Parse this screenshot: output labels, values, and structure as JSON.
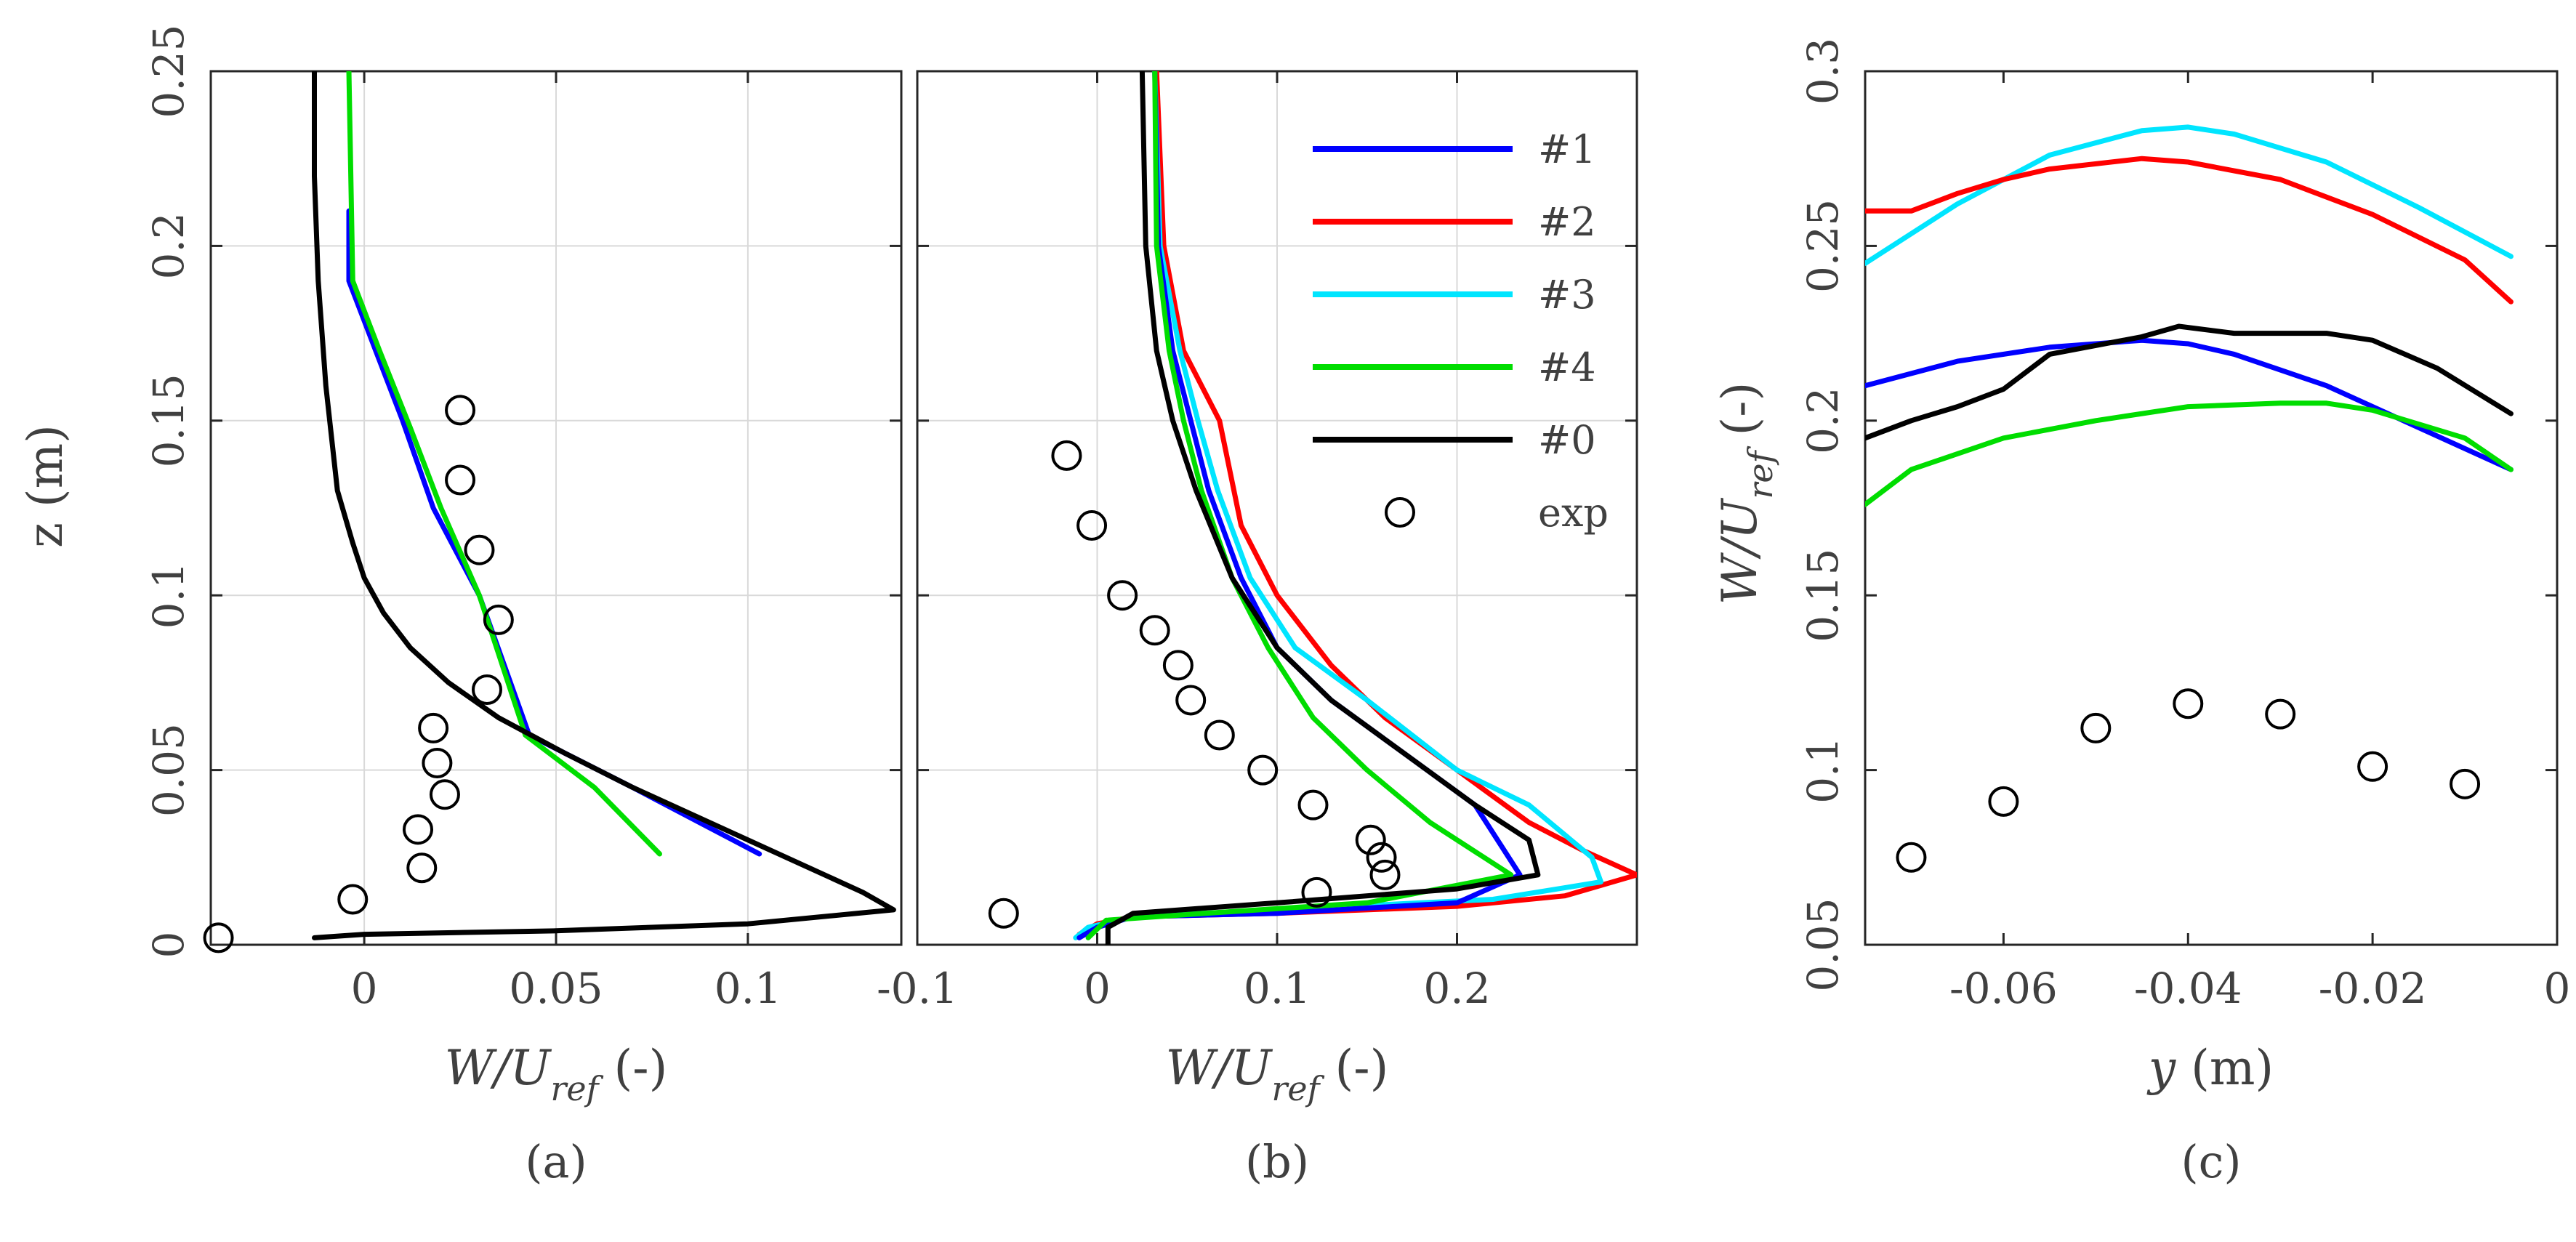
{
  "chart_data": [
    {
      "id": "a",
      "type": "line",
      "panel_label": "(a)",
      "xlabel": {
        "main": "W/U",
        "sub": "ref",
        "unit": " (-)"
      },
      "ylabel": "z (m)",
      "xlim": [
        -0.04,
        0.14
      ],
      "ylim": [
        0,
        0.25
      ],
      "xticks": [
        0,
        0.05,
        0.1
      ],
      "xtick_labels": [
        "0",
        "0.05",
        "0.1"
      ],
      "yticks": [
        0,
        0.05,
        0.1,
        0.15,
        0.2,
        0.25
      ],
      "ytick_labels": [
        "0",
        "0.05",
        "0.1",
        "0.15",
        "0.2",
        "0.25"
      ],
      "ytick_rotated": true,
      "grid": true,
      "series": [
        {
          "id": "s1",
          "color": "#0000ff",
          "points": [
            [
              -0.004,
              0.21
            ],
            [
              -0.004,
              0.19
            ],
            [
              0.003,
              0.17
            ],
            [
              0.01,
              0.15
            ],
            [
              0.018,
              0.125
            ],
            [
              0.03,
              0.1
            ],
            [
              0.043,
              0.06
            ],
            [
              0.07,
              0.045
            ],
            [
              0.103,
              0.026
            ]
          ]
        },
        {
          "id": "s4",
          "color": "#00dd00",
          "points": [
            [
              -0.004,
              0.25
            ],
            [
              -0.003,
              0.19
            ],
            [
              0.004,
              0.17
            ],
            [
              0.012,
              0.148
            ],
            [
              0.02,
              0.125
            ],
            [
              0.03,
              0.1
            ],
            [
              0.042,
              0.06
            ],
            [
              0.06,
              0.045
            ],
            [
              0.077,
              0.026
            ]
          ]
        },
        {
          "id": "s0",
          "color": "#000000",
          "points": [
            [
              -0.013,
              0.25
            ],
            [
              -0.013,
              0.22
            ],
            [
              -0.012,
              0.19
            ],
            [
              -0.01,
              0.16
            ],
            [
              -0.007,
              0.13
            ],
            [
              -0.003,
              0.115
            ],
            [
              0.0,
              0.105
            ],
            [
              0.005,
              0.095
            ],
            [
              0.012,
              0.085
            ],
            [
              0.022,
              0.075
            ],
            [
              0.035,
              0.065
            ],
            [
              0.052,
              0.055
            ],
            [
              0.07,
              0.045
            ],
            [
              0.09,
              0.035
            ],
            [
              0.11,
              0.025
            ],
            [
              0.13,
              0.015
            ],
            [
              0.138,
              0.01
            ],
            [
              0.1,
              0.006
            ],
            [
              0.05,
              0.004
            ],
            [
              0.0,
              0.003
            ],
            [
              -0.013,
              0.002
            ]
          ]
        }
      ],
      "exp_points": [
        [
          -0.038,
          0.002
        ],
        [
          -0.003,
          0.013
        ],
        [
          0.015,
          0.022
        ],
        [
          0.014,
          0.033
        ],
        [
          0.021,
          0.043
        ],
        [
          0.019,
          0.052
        ],
        [
          0.018,
          0.062
        ],
        [
          0.032,
          0.073
        ],
        [
          0.035,
          0.093
        ],
        [
          0.03,
          0.113
        ],
        [
          0.025,
          0.133
        ],
        [
          0.025,
          0.153
        ]
      ]
    },
    {
      "id": "b",
      "type": "line",
      "panel_label": "(b)",
      "xlabel": {
        "main": "W/U",
        "sub": "ref",
        "unit": " (-)"
      },
      "ylabel": "",
      "xlim": [
        -0.1,
        0.3
      ],
      "ylim": [
        0,
        0.25
      ],
      "xticks": [
        -0.1,
        0,
        0.1,
        0.2
      ],
      "xtick_labels": [
        "-0.1",
        "0",
        "0.1",
        "0.2"
      ],
      "yticks": [
        0,
        0.05,
        0.1,
        0.15,
        0.2,
        0.25
      ],
      "ytick_labels": [],
      "grid": true,
      "legend": {
        "position": "top-right",
        "entries": [
          {
            "label": "#1",
            "color": "#0000ff",
            "kind": "line"
          },
          {
            "label": "#2",
            "color": "#ff0000",
            "kind": "line"
          },
          {
            "label": "#3",
            "color": "#00e5ff",
            "kind": "line"
          },
          {
            "label": "#4",
            "color": "#00dd00",
            "kind": "line"
          },
          {
            "label": "#0",
            "color": "#000000",
            "kind": "line"
          },
          {
            "label": "exp",
            "color": "#000000",
            "kind": "marker"
          }
        ]
      },
      "series": [
        {
          "id": "s2",
          "color": "#ff0000",
          "points": [
            [
              0.033,
              0.25
            ],
            [
              0.037,
              0.2
            ],
            [
              0.048,
              0.17
            ],
            [
              0.068,
              0.15
            ],
            [
              0.08,
              0.12
            ],
            [
              0.1,
              0.1
            ],
            [
              0.13,
              0.08
            ],
            [
              0.16,
              0.065
            ],
            [
              0.2,
              0.05
            ],
            [
              0.24,
              0.035
            ],
            [
              0.27,
              0.027
            ],
            [
              0.3,
              0.02
            ],
            [
              0.26,
              0.014
            ],
            [
              0.2,
              0.011
            ],
            [
              0.1,
              0.009
            ],
            [
              0.02,
              0.008
            ],
            [
              0.0,
              0.006
            ],
            [
              -0.01,
              0.003
            ]
          ]
        },
        {
          "id": "s3",
          "color": "#00e5ff",
          "points": [
            [
              0.032,
              0.25
            ],
            [
              0.035,
              0.2
            ],
            [
              0.046,
              0.17
            ],
            [
              0.056,
              0.15
            ],
            [
              0.067,
              0.13
            ],
            [
              0.085,
              0.105
            ],
            [
              0.11,
              0.085
            ],
            [
              0.15,
              0.07
            ],
            [
              0.2,
              0.05
            ],
            [
              0.24,
              0.04
            ],
            [
              0.275,
              0.025
            ],
            [
              0.28,
              0.018
            ],
            [
              0.22,
              0.013
            ],
            [
              0.1,
              0.01
            ],
            [
              0.02,
              0.008
            ],
            [
              -0.005,
              0.005
            ],
            [
              -0.012,
              0.002
            ]
          ]
        },
        {
          "id": "s1",
          "color": "#0000ff",
          "points": [
            [
              0.032,
              0.25
            ],
            [
              0.034,
              0.2
            ],
            [
              0.042,
              0.17
            ],
            [
              0.052,
              0.15
            ],
            [
              0.062,
              0.13
            ],
            [
              0.08,
              0.105
            ],
            [
              0.1,
              0.085
            ],
            [
              0.13,
              0.07
            ],
            [
              0.17,
              0.055
            ],
            [
              0.21,
              0.04
            ],
            [
              0.235,
              0.02
            ],
            [
              0.2,
              0.012
            ],
            [
              0.1,
              0.009
            ],
            [
              0.02,
              0.008
            ],
            [
              0.0,
              0.005
            ],
            [
              -0.01,
              0.002
            ]
          ]
        },
        {
          "id": "s4",
          "color": "#00dd00",
          "points": [
            [
              0.032,
              0.25
            ],
            [
              0.033,
              0.2
            ],
            [
              0.04,
              0.17
            ],
            [
              0.048,
              0.15
            ],
            [
              0.058,
              0.13
            ],
            [
              0.075,
              0.105
            ],
            [
              0.095,
              0.085
            ],
            [
              0.12,
              0.065
            ],
            [
              0.15,
              0.05
            ],
            [
              0.185,
              0.035
            ],
            [
              0.23,
              0.02
            ],
            [
              0.15,
              0.012
            ],
            [
              0.06,
              0.009
            ],
            [
              0.005,
              0.007
            ],
            [
              -0.005,
              0.002
            ]
          ]
        },
        {
          "id": "s0",
          "color": "#000000",
          "points": [
            [
              0.025,
              0.25
            ],
            [
              0.027,
              0.2
            ],
            [
              0.033,
              0.17
            ],
            [
              0.042,
              0.15
            ],
            [
              0.055,
              0.13
            ],
            [
              0.075,
              0.105
            ],
            [
              0.1,
              0.085
            ],
            [
              0.13,
              0.07
            ],
            [
              0.17,
              0.055
            ],
            [
              0.21,
              0.04
            ],
            [
              0.24,
              0.03
            ],
            [
              0.245,
              0.02
            ],
            [
              0.2,
              0.016
            ],
            [
              0.1,
              0.012
            ],
            [
              0.02,
              0.009
            ],
            [
              0.006,
              0.005
            ],
            [
              0.006,
              0.0
            ]
          ]
        }
      ],
      "exp_points": [
        [
          -0.052,
          0.009
        ],
        [
          0.122,
          0.015
        ],
        [
          0.16,
          0.02
        ],
        [
          0.158,
          0.025
        ],
        [
          0.152,
          0.03
        ],
        [
          0.12,
          0.04
        ],
        [
          0.092,
          0.05
        ],
        [
          0.068,
          0.06
        ],
        [
          0.052,
          0.07
        ],
        [
          0.045,
          0.08
        ],
        [
          0.032,
          0.09
        ],
        [
          0.014,
          0.1
        ],
        [
          -0.003,
          0.12
        ],
        [
          -0.017,
          0.14
        ]
      ]
    },
    {
      "id": "c",
      "type": "line",
      "panel_label": "(c)",
      "xlabel": {
        "main": "y",
        "sub": "",
        "unit": " (m)"
      },
      "ylabel": {
        "main": "W/U",
        "sub": "ref",
        "unit": " (-)"
      },
      "xlim": [
        -0.075,
        0
      ],
      "ylim": [
        0.05,
        0.3
      ],
      "xticks": [
        -0.06,
        -0.04,
        -0.02,
        0
      ],
      "xtick_labels": [
        "-0.06",
        "-0.04",
        "-0.02",
        "0"
      ],
      "yticks": [
        0.05,
        0.1,
        0.15,
        0.2,
        0.25,
        0.3
      ],
      "ytick_labels": [
        "0.05",
        "0.1",
        "0.15",
        "0.2",
        "0.25",
        "0.3"
      ],
      "ytick_rotated": true,
      "grid": false,
      "series": [
        {
          "id": "s3",
          "color": "#00e5ff",
          "points": [
            [
              -0.075,
              0.245
            ],
            [
              -0.065,
              0.262
            ],
            [
              -0.055,
              0.276
            ],
            [
              -0.045,
              0.283
            ],
            [
              -0.04,
              0.284
            ],
            [
              -0.035,
              0.282
            ],
            [
              -0.025,
              0.274
            ],
            [
              -0.015,
              0.261
            ],
            [
              -0.005,
              0.247
            ]
          ]
        },
        {
          "id": "s2",
          "color": "#ff0000",
          "points": [
            [
              -0.075,
              0.26
            ],
            [
              -0.07,
              0.26
            ],
            [
              -0.065,
              0.265
            ],
            [
              -0.06,
              0.269
            ],
            [
              -0.055,
              0.272
            ],
            [
              -0.045,
              0.275
            ],
            [
              -0.04,
              0.274
            ],
            [
              -0.03,
              0.269
            ],
            [
              -0.02,
              0.259
            ],
            [
              -0.01,
              0.246
            ],
            [
              -0.005,
              0.234
            ]
          ]
        },
        {
          "id": "s1",
          "color": "#0000ff",
          "points": [
            [
              -0.075,
              0.21
            ],
            [
              -0.065,
              0.217
            ],
            [
              -0.055,
              0.221
            ],
            [
              -0.045,
              0.223
            ],
            [
              -0.04,
              0.222
            ],
            [
              -0.035,
              0.219
            ],
            [
              -0.025,
              0.21
            ],
            [
              -0.015,
              0.198
            ],
            [
              -0.005,
              0.186
            ]
          ]
        },
        {
          "id": "s0",
          "color": "#000000",
          "points": [
            [
              -0.075,
              0.195
            ],
            [
              -0.07,
              0.2
            ],
            [
              -0.065,
              0.204
            ],
            [
              -0.06,
              0.209
            ],
            [
              -0.055,
              0.219
            ],
            [
              -0.045,
              0.224
            ],
            [
              -0.041,
              0.227
            ],
            [
              -0.035,
              0.225
            ],
            [
              -0.025,
              0.225
            ],
            [
              -0.02,
              0.223
            ],
            [
              -0.013,
              0.215
            ],
            [
              -0.005,
              0.202
            ]
          ]
        },
        {
          "id": "s4",
          "color": "#00dd00",
          "points": [
            [
              -0.075,
              0.176
            ],
            [
              -0.07,
              0.186
            ],
            [
              -0.06,
              0.195
            ],
            [
              -0.05,
              0.2
            ],
            [
              -0.04,
              0.204
            ],
            [
              -0.03,
              0.205
            ],
            [
              -0.025,
              0.205
            ],
            [
              -0.02,
              0.203
            ],
            [
              -0.01,
              0.195
            ],
            [
              -0.005,
              0.186
            ]
          ]
        }
      ],
      "exp_points": [
        [
          -0.07,
          0.075
        ],
        [
          -0.06,
          0.091
        ],
        [
          -0.05,
          0.112
        ],
        [
          -0.04,
          0.119
        ],
        [
          -0.03,
          0.116
        ],
        [
          -0.02,
          0.101
        ],
        [
          -0.01,
          0.096
        ]
      ]
    }
  ]
}
